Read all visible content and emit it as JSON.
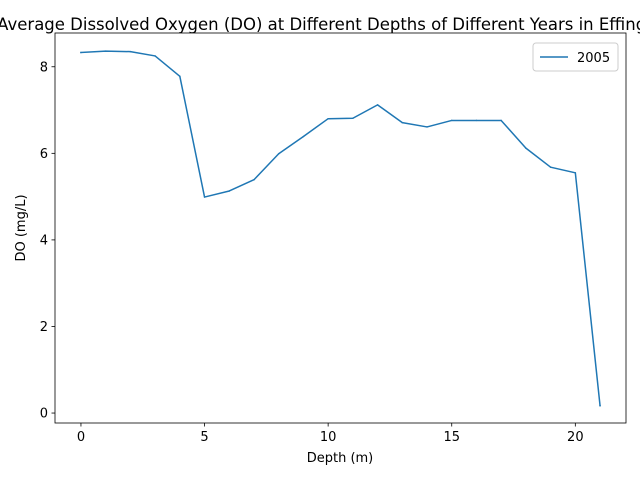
{
  "chart_data": {
    "type": "line",
    "title": "Average Dissolved Oxygen (DO) at Different Depths of Different Years in Effingham",
    "xlabel": "Depth (m)",
    "ylabel": "DO (mg/L)",
    "xlim": [
      -1.05,
      22.05
    ],
    "ylim": [
      -0.23,
      8.78
    ],
    "xticks": [
      0,
      5,
      10,
      15,
      20
    ],
    "yticks": [
      0,
      2,
      4,
      6,
      8
    ],
    "grid": false,
    "legend": "top-right",
    "series": [
      {
        "name": "2005",
        "color": "#1f77b4",
        "x": [
          0,
          1,
          2,
          3,
          4,
          5,
          6,
          7,
          8,
          9,
          10,
          11,
          12,
          13,
          14,
          15,
          16,
          17,
          18,
          19,
          20,
          21
        ],
        "y": [
          8.33,
          8.36,
          8.35,
          8.25,
          7.78,
          4.99,
          5.13,
          5.39,
          5.99,
          6.39,
          6.8,
          6.81,
          7.12,
          6.71,
          6.61,
          6.76,
          6.76,
          6.76,
          6.12,
          5.68,
          5.55,
          0.17
        ]
      }
    ]
  }
}
